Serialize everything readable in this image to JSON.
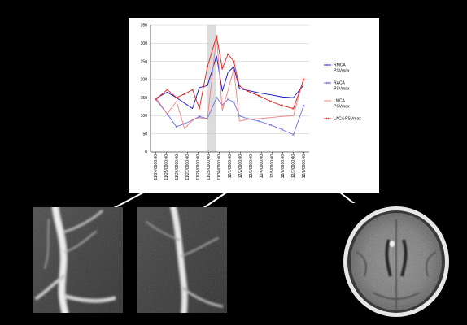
{
  "chart_data": {
    "type": "line",
    "title": "",
    "xlabel": "",
    "ylabel": "",
    "ylim": [
      0,
      350
    ],
    "yticks": [
      0,
      50,
      100,
      150,
      200,
      250,
      300,
      350
    ],
    "categories": [
      "11/24/0900:00",
      "11/25/0900:00",
      "11/26/0900:00",
      "11/27/0900:00",
      "11/28/0900:00",
      "11/29/0900:00",
      "11/30/0900:00",
      "12/1/0900:00",
      "12/2/0900:00",
      "12/3/0900:00",
      "12/4/0900:00",
      "12/5/0900:00",
      "12/6/0900:00",
      "12/7/0900:00",
      "12/8/0900:00"
    ],
    "x": [
      0,
      1,
      1.8,
      2.5,
      3.2,
      3.8,
      4.4,
      5,
      5.5,
      6,
      6.5,
      7,
      7.5,
      8,
      8.5,
      9,
      9.5,
      10,
      11,
      12,
      12.9
    ],
    "highlight_range": [
      4.85,
      5.65
    ],
    "grid": "horizontal",
    "legend_position": "right",
    "series": [
      {
        "name": "RMCA PSVmax",
        "color": "#1010c0",
        "marker": "none",
        "x": [
          0,
          1,
          1.8,
          2.5,
          3.2,
          3.8,
          4.5,
          5.3,
          5.8,
          6.3,
          6.8,
          7.3,
          8,
          9,
          10,
          11,
          12,
          12.9
        ],
        "y": [
          148,
          165,
          150,
          135,
          120,
          178,
          183,
          265,
          168,
          220,
          235,
          175,
          170,
          163,
          158,
          152,
          150,
          185
        ]
      },
      {
        "name": "RACA PSVmax",
        "color": "#7070e0",
        "marker": "x",
        "x": [
          0,
          1,
          1.8,
          2.5,
          3.2,
          3.8,
          4.5,
          5.3,
          5.8,
          6.3,
          6.8,
          7.3,
          8,
          9,
          10,
          11,
          12,
          12.9
        ],
        "y": [
          145,
          105,
          70,
          78,
          88,
          98,
          92,
          150,
          130,
          145,
          138,
          100,
          92,
          85,
          75,
          62,
          48,
          128
        ]
      },
      {
        "name": "LMCA PSVmax",
        "color": "#f08080",
        "marker": "none",
        "x": [
          0,
          1,
          1.8,
          2.5,
          3.2,
          3.8,
          4.5,
          5.3,
          5.8,
          6.3,
          6.8,
          7.3,
          8,
          9,
          10,
          11,
          12,
          12.9
        ],
        "y": [
          150,
          105,
          140,
          65,
          88,
          95,
          90,
          320,
          115,
          170,
          230,
          85,
          90,
          92,
          95,
          98,
          100,
          205
        ]
      },
      {
        "name": "LACA PSVmax",
        "color": "#e02020",
        "marker": "x",
        "x": [
          0,
          1,
          1.8,
          2.5,
          3.2,
          3.8,
          4.5,
          5.3,
          5.8,
          6.3,
          6.8,
          7.3,
          8,
          9,
          10,
          11,
          12,
          12.9
        ],
        "y": [
          145,
          172,
          150,
          160,
          172,
          120,
          235,
          320,
          230,
          270,
          250,
          182,
          168,
          155,
          140,
          128,
          120,
          200
        ]
      }
    ]
  },
  "panels": {
    "angio_1": {
      "icon": "cerebral-angiogram-image"
    },
    "angio_2": {
      "icon": "cerebral-angiogram-image"
    },
    "ct": {
      "icon": "brain-ct-scan-image"
    }
  }
}
